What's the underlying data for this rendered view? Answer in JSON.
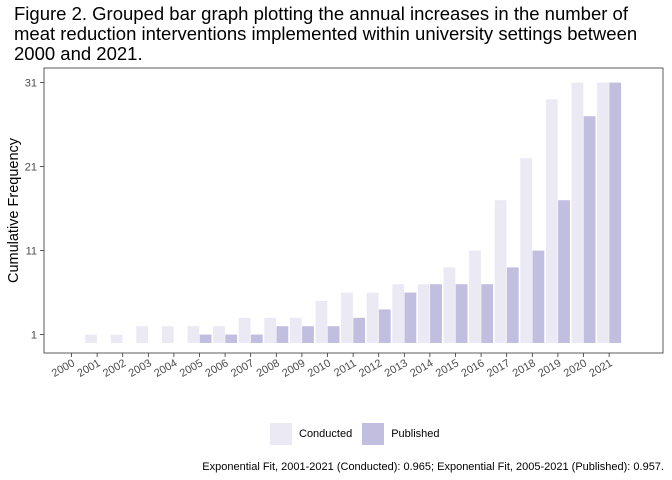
{
  "chart_data": {
    "type": "bar",
    "title": "Figure 2. Grouped bar graph plotting the annual increases in the number of meat reduction interventions implemented within university settings between 2000 and 2021.",
    "xlabel": "",
    "ylabel": "Cumulative Frequency",
    "categories": [
      "2000",
      "2001",
      "2002",
      "2003",
      "2004",
      "2005",
      "2006",
      "2007",
      "2008",
      "2009",
      "2010",
      "2011",
      "2012",
      "2013",
      "2014",
      "2015",
      "2016",
      "2017",
      "2018",
      "2019",
      "2020",
      "2021"
    ],
    "series": [
      {
        "name": "Conducted",
        "color": "#ebeaf4",
        "values": [
          0,
          1,
          1,
          2,
          2,
          2,
          2,
          3,
          3,
          3,
          5,
          6,
          6,
          7,
          7,
          9,
          11,
          17,
          22,
          29,
          31,
          31
        ]
      },
      {
        "name": "Published",
        "color": "#c1bedf",
        "values": [
          0,
          0,
          0,
          0,
          0,
          1,
          1,
          1,
          2,
          2,
          2,
          3,
          4,
          6,
          7,
          7,
          7,
          9,
          11,
          17,
          27,
          31
        ]
      }
    ],
    "yticks": [
      "1",
      "11",
      "21",
      "31"
    ],
    "ylim": [
      0,
      31
    ],
    "grid": false,
    "legend_position": "bottom"
  },
  "caption": "Exponential Fit, 2001-2021 (Conducted): 0.965; Exponential Fit, 2005-2021 (Published): 0.957."
}
